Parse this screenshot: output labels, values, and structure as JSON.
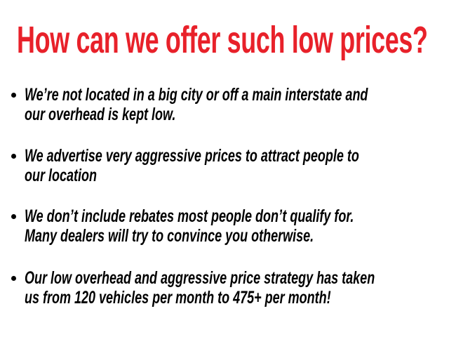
{
  "title": "How can we offer such low prices?",
  "colors": {
    "title": "#e8212a",
    "body": "#000000"
  },
  "bullets": [
    {
      "lines": [
        "We’re not located in a big city or off a main interstate and",
        "our overhead is kept low."
      ]
    },
    {
      "lines": [
        "We advertise very aggressive prices to attract people to",
        "our location"
      ]
    },
    {
      "lines": [
        "We don’t include rebates most people don’t qualify for.",
        "Many dealers will try to convince you otherwise."
      ]
    },
    {
      "lines": [
        "Our low overhead and aggressive price strategy has taken",
        "us from 120 vehicles per month to 475+ per month!"
      ]
    }
  ]
}
